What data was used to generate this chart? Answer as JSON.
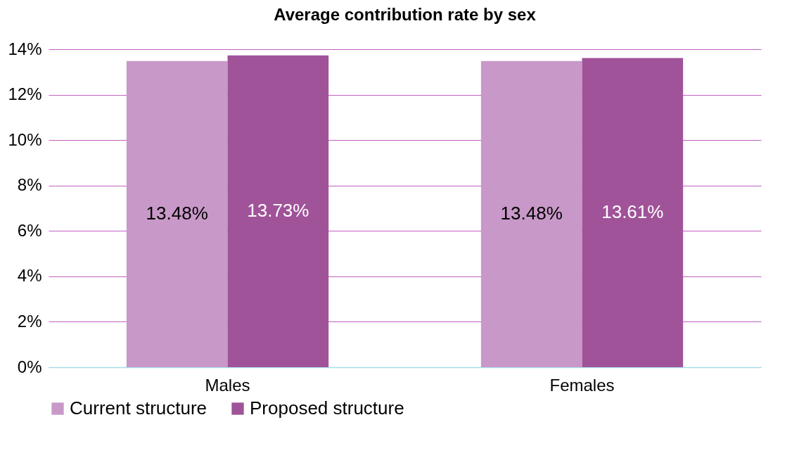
{
  "chart_data": {
    "type": "bar",
    "title": "Average contribution rate by sex",
    "categories": [
      "Males",
      "Females"
    ],
    "series": [
      {
        "name": "Current structure",
        "color": "#c898c8",
        "values": [
          13.48,
          13.48
        ],
        "value_labels": [
          "13.48%",
          "13.48%"
        ]
      },
      {
        "name": "Proposed structure",
        "color": "#a05399",
        "values": [
          13.73,
          13.61
        ],
        "value_labels": [
          "13.73%",
          "13.61%"
        ]
      }
    ],
    "ylim": [
      0,
      14
    ],
    "yticks": [
      {
        "value": 0,
        "label": "0%"
      },
      {
        "value": 2,
        "label": "2%"
      },
      {
        "value": 4,
        "label": "4%"
      },
      {
        "value": 6,
        "label": "6%"
      },
      {
        "value": 8,
        "label": "8%"
      },
      {
        "value": 10,
        "label": "10%"
      },
      {
        "value": 12,
        "label": "12%"
      },
      {
        "value": 14,
        "label": "14%"
      }
    ],
    "grid": "y",
    "legend": "bottom"
  }
}
